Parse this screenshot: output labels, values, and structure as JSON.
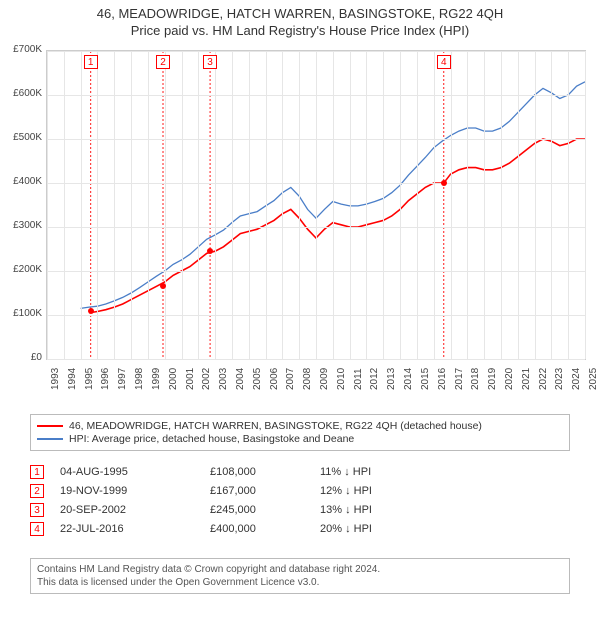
{
  "title_line1": "46, MEADOWRIDGE, HATCH WARREN, BASINGSTOKE, RG22 4QH",
  "title_line2": "Price paid vs. HM Land Registry's House Price Index (HPI)",
  "chart": {
    "type": "line",
    "background_color": "#ffffff",
    "grid_color": "#e6e6e6",
    "border_color": "#cccccc",
    "x": {
      "min": 1993,
      "max": 2025,
      "ticks": [
        1993,
        1994,
        1995,
        1996,
        1997,
        1998,
        1999,
        2000,
        2001,
        2002,
        2003,
        2004,
        2005,
        2006,
        2007,
        2008,
        2009,
        2010,
        2011,
        2012,
        2013,
        2014,
        2015,
        2016,
        2017,
        2018,
        2019,
        2020,
        2021,
        2022,
        2023,
        2024,
        2025
      ]
    },
    "y": {
      "min": 0,
      "max": 700000,
      "ticks": [
        0,
        100000,
        200000,
        300000,
        400000,
        500000,
        600000,
        700000
      ],
      "labels": [
        "£0",
        "£100K",
        "£200K",
        "£300K",
        "£400K",
        "£500K",
        "£600K",
        "£700K"
      ]
    },
    "marker_line_style": {
      "color": "#ff0000",
      "dash": "2 2",
      "width": 0.9
    },
    "series": [
      {
        "id": "red",
        "color": "#ff0000",
        "linewidth": 1.6,
        "label": "46, MEADOWRIDGE, HATCH WARREN, BASINGSTOKE, RG22 4QH (detached house)",
        "points": [
          [
            1995.5,
            105000
          ],
          [
            1996.0,
            108000
          ],
          [
            1996.5,
            112000
          ],
          [
            1997.0,
            118000
          ],
          [
            1997.5,
            125000
          ],
          [
            1998.0,
            135000
          ],
          [
            1998.5,
            145000
          ],
          [
            1999.0,
            155000
          ],
          [
            1999.5,
            165000
          ],
          [
            2000.0,
            175000
          ],
          [
            2000.5,
            190000
          ],
          [
            2001.0,
            200000
          ],
          [
            2001.5,
            210000
          ],
          [
            2002.0,
            225000
          ],
          [
            2002.5,
            240000
          ],
          [
            2003.0,
            245000
          ],
          [
            2003.5,
            255000
          ],
          [
            2004.0,
            270000
          ],
          [
            2004.5,
            285000
          ],
          [
            2005.0,
            290000
          ],
          [
            2005.5,
            295000
          ],
          [
            2006.0,
            305000
          ],
          [
            2006.5,
            315000
          ],
          [
            2007.0,
            330000
          ],
          [
            2007.5,
            340000
          ],
          [
            2008.0,
            320000
          ],
          [
            2008.5,
            295000
          ],
          [
            2009.0,
            275000
          ],
          [
            2009.5,
            295000
          ],
          [
            2010.0,
            310000
          ],
          [
            2010.5,
            305000
          ],
          [
            2011.0,
            300000
          ],
          [
            2011.5,
            300000
          ],
          [
            2012.0,
            305000
          ],
          [
            2012.5,
            310000
          ],
          [
            2013.0,
            315000
          ],
          [
            2013.5,
            325000
          ],
          [
            2014.0,
            340000
          ],
          [
            2014.5,
            360000
          ],
          [
            2015.0,
            375000
          ],
          [
            2015.5,
            390000
          ],
          [
            2016.0,
            400000
          ],
          [
            2016.6,
            400000
          ],
          [
            2017.0,
            420000
          ],
          [
            2017.5,
            430000
          ],
          [
            2018.0,
            435000
          ],
          [
            2018.5,
            435000
          ],
          [
            2019.0,
            430000
          ],
          [
            2019.5,
            430000
          ],
          [
            2020.0,
            435000
          ],
          [
            2020.5,
            445000
          ],
          [
            2021.0,
            460000
          ],
          [
            2021.5,
            475000
          ],
          [
            2022.0,
            490000
          ],
          [
            2022.5,
            500000
          ],
          [
            2023.0,
            495000
          ],
          [
            2023.5,
            485000
          ],
          [
            2024.0,
            490000
          ],
          [
            2024.5,
            500000
          ],
          [
            2025.0,
            500000
          ]
        ]
      },
      {
        "id": "blue",
        "color": "#4a7ec8",
        "linewidth": 1.3,
        "label": "HPI: Average price, detached house, Basingstoke and Deane",
        "points": [
          [
            1995.0,
            115000
          ],
          [
            1995.5,
            118000
          ],
          [
            1996.0,
            120000
          ],
          [
            1996.5,
            125000
          ],
          [
            1997.0,
            132000
          ],
          [
            1997.5,
            140000
          ],
          [
            1998.0,
            150000
          ],
          [
            1998.5,
            162000
          ],
          [
            1999.0,
            175000
          ],
          [
            1999.5,
            188000
          ],
          [
            2000.0,
            200000
          ],
          [
            2000.5,
            215000
          ],
          [
            2001.0,
            225000
          ],
          [
            2001.5,
            238000
          ],
          [
            2002.0,
            255000
          ],
          [
            2002.5,
            272000
          ],
          [
            2003.0,
            282000
          ],
          [
            2003.5,
            293000
          ],
          [
            2004.0,
            310000
          ],
          [
            2004.5,
            325000
          ],
          [
            2005.0,
            330000
          ],
          [
            2005.5,
            335000
          ],
          [
            2006.0,
            348000
          ],
          [
            2006.5,
            360000
          ],
          [
            2007.0,
            378000
          ],
          [
            2007.5,
            390000
          ],
          [
            2008.0,
            370000
          ],
          [
            2008.5,
            340000
          ],
          [
            2009.0,
            320000
          ],
          [
            2009.5,
            340000
          ],
          [
            2010.0,
            358000
          ],
          [
            2010.5,
            352000
          ],
          [
            2011.0,
            348000
          ],
          [
            2011.5,
            348000
          ],
          [
            2012.0,
            352000
          ],
          [
            2012.5,
            358000
          ],
          [
            2013.0,
            365000
          ],
          [
            2013.5,
            378000
          ],
          [
            2014.0,
            395000
          ],
          [
            2014.5,
            418000
          ],
          [
            2015.0,
            438000
          ],
          [
            2015.5,
            458000
          ],
          [
            2016.0,
            480000
          ],
          [
            2016.5,
            495000
          ],
          [
            2017.0,
            508000
          ],
          [
            2017.5,
            518000
          ],
          [
            2018.0,
            525000
          ],
          [
            2018.5,
            525000
          ],
          [
            2019.0,
            518000
          ],
          [
            2019.5,
            518000
          ],
          [
            2020.0,
            525000
          ],
          [
            2020.5,
            540000
          ],
          [
            2021.0,
            560000
          ],
          [
            2021.5,
            580000
          ],
          [
            2022.0,
            600000
          ],
          [
            2022.5,
            615000
          ],
          [
            2023.0,
            605000
          ],
          [
            2023.5,
            592000
          ],
          [
            2024.0,
            600000
          ],
          [
            2024.5,
            620000
          ],
          [
            2025.0,
            630000
          ]
        ]
      }
    ],
    "markers": [
      {
        "n": "1",
        "year": 1995.6
      },
      {
        "n": "2",
        "year": 1999.9
      },
      {
        "n": "3",
        "year": 2002.7
      },
      {
        "n": "4",
        "year": 2016.6
      }
    ],
    "marker_dots": [
      {
        "year": 1995.6,
        "value": 108000
      },
      {
        "year": 1999.9,
        "value": 167000
      },
      {
        "year": 2002.7,
        "value": 245000
      },
      {
        "year": 2016.6,
        "value": 400000
      }
    ]
  },
  "legend": {
    "entries": [
      {
        "color": "#ff0000",
        "text": "46, MEADOWRIDGE, HATCH WARREN, BASINGSTOKE, RG22 4QH (detached house)"
      },
      {
        "color": "#4a7ec8",
        "text": "HPI: Average price, detached house, Basingstoke and Deane"
      }
    ]
  },
  "events": [
    {
      "n": "1",
      "date": "04-AUG-1995",
      "price": "£108,000",
      "diff": "11% ↓ HPI"
    },
    {
      "n": "2",
      "date": "19-NOV-1999",
      "price": "£167,000",
      "diff": "12% ↓ HPI"
    },
    {
      "n": "3",
      "date": "20-SEP-2002",
      "price": "£245,000",
      "diff": "13% ↓ HPI"
    },
    {
      "n": "4",
      "date": "22-JUL-2016",
      "price": "£400,000",
      "diff": "20% ↓ HPI"
    }
  ],
  "footer": {
    "line1": "Contains HM Land Registry data © Crown copyright and database right 2024.",
    "line2": "This data is licensed under the Open Government Licence v3.0."
  }
}
